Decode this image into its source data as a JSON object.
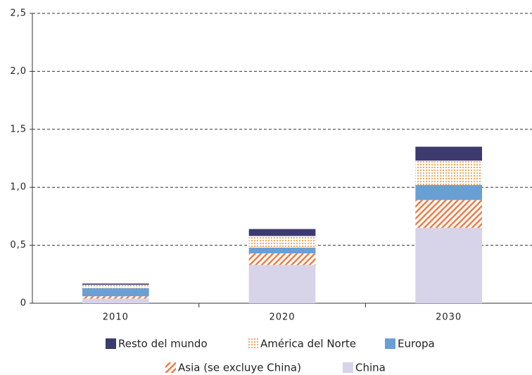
{
  "chart_data": {
    "type": "stacked_bar",
    "categories": [
      "2010",
      "2020",
      "2030"
    ],
    "series": [
      {
        "name": "China",
        "color": "#d7d3e8",
        "pattern": "solid",
        "values": [
          0.04,
          0.33,
          0.65
        ]
      },
      {
        "name": "Asia (se excluye China)",
        "color": "#ee7d45",
        "pattern": "hatch",
        "values": [
          0.02,
          0.1,
          0.24
        ]
      },
      {
        "name": "Europa",
        "color": "#6a9fd4",
        "pattern": "solid",
        "values": [
          0.07,
          0.05,
          0.13
        ]
      },
      {
        "name": "América del Norte",
        "color": "#f0a050",
        "pattern": "dots",
        "values": [
          0.03,
          0.1,
          0.21
        ]
      },
      {
        "name": "Resto del mundo",
        "color": "#3c3a6e",
        "pattern": "solid",
        "values": [
          0.01,
          0.06,
          0.12
        ]
      }
    ],
    "ylim": [
      0,
      2.5
    ],
    "yticks": [
      0,
      {
        "value": 0.5,
        "label": "0,5"
      },
      {
        "value": 1.0,
        "label": "1,0"
      },
      {
        "value": 1.5,
        "label": "1,5"
      },
      {
        "value": 2.0,
        "label": "2,0"
      },
      {
        "value": 2.5,
        "label": "2,5"
      }
    ],
    "grid": true
  }
}
